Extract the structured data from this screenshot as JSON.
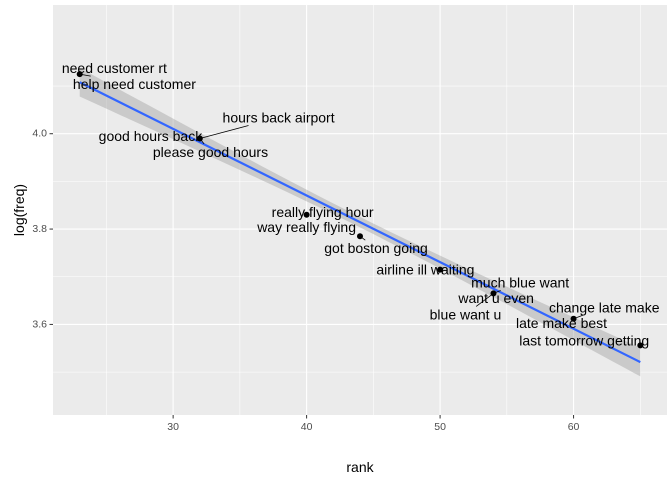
{
  "chart_data": {
    "type": "scatter",
    "title": "",
    "xlabel": "rank",
    "ylabel": "log(freq)",
    "xlim": [
      21.0,
      67.0
    ],
    "ylim": [
      3.41,
      4.27
    ],
    "x_ticks": [
      30,
      40,
      50,
      60
    ],
    "y_ticks": [
      3.6,
      3.8,
      4.0
    ],
    "x_tick_labels": [
      "30",
      "40",
      "50",
      "60"
    ],
    "y_tick_labels": [
      "3.6",
      "3.8",
      "4.0"
    ],
    "grid": true,
    "legend": "none",
    "points": [
      {
        "x": 23,
        "y": 4.125
      },
      {
        "x": 32,
        "y": 3.99
      },
      {
        "x": 40,
        "y": 3.83
      },
      {
        "x": 44,
        "y": 3.785
      },
      {
        "x": 50,
        "y": 3.715
      },
      {
        "x": 54,
        "y": 3.665
      },
      {
        "x": 60,
        "y": 3.612
      },
      {
        "x": 65,
        "y": 3.556
      }
    ],
    "labels": [
      {
        "text": "need customer rt",
        "x": 23,
        "y": 4.125,
        "lx": 25.6,
        "ly": 4.138,
        "anchor": "middle"
      },
      {
        "text": "help need customer",
        "x": 23,
        "y": 4.125,
        "lx": 27.1,
        "ly": 4.104,
        "anchor": "middle"
      },
      {
        "text": "hours back airport",
        "x": 32,
        "y": 3.99,
        "lx": 37.9,
        "ly": 4.034,
        "anchor": "middle"
      },
      {
        "text": "good hours back",
        "x": 32,
        "y": 3.99,
        "lx": 28.3,
        "ly": 3.995,
        "anchor": "middle"
      },
      {
        "text": "please good hours",
        "x": 32,
        "y": 3.99,
        "lx": 32.8,
        "ly": 3.962,
        "anchor": "middle"
      },
      {
        "text": "really flying hour",
        "x": 40,
        "y": 3.83,
        "lx": 41.2,
        "ly": 3.836,
        "anchor": "middle"
      },
      {
        "text": "way really flying",
        "x": 40,
        "y": 3.83,
        "lx": 40.0,
        "ly": 3.804,
        "anchor": "middle"
      },
      {
        "text": "got boston going",
        "x": 44,
        "y": 3.785,
        "lx": 45.2,
        "ly": 3.76,
        "anchor": "middle"
      },
      {
        "text": "airline ill waiting",
        "x": 50,
        "y": 3.715,
        "lx": 48.9,
        "ly": 3.715,
        "anchor": "middle"
      },
      {
        "text": "much blue want",
        "x": 54,
        "y": 3.665,
        "lx": 56.0,
        "ly": 3.688,
        "anchor": "middle"
      },
      {
        "text": "want u even",
        "x": 54,
        "y": 3.665,
        "lx": 54.2,
        "ly": 3.655,
        "anchor": "middle"
      },
      {
        "text": "blue want u",
        "x": 54,
        "y": 3.665,
        "lx": 51.9,
        "ly": 3.621,
        "anchor": "middle"
      },
      {
        "text": "change late make",
        "x": 60,
        "y": 3.612,
        "lx": 62.3,
        "ly": 3.636,
        "anchor": "middle"
      },
      {
        "text": "late make best",
        "x": 60,
        "y": 3.612,
        "lx": 59.1,
        "ly": 3.603,
        "anchor": "middle"
      },
      {
        "text": "last tomorrow getting",
        "x": 65,
        "y": 3.556,
        "lx": 60.8,
        "ly": 3.566,
        "anchor": "middle"
      }
    ],
    "fit": {
      "method": "lm",
      "x": [
        23,
        65
      ],
      "y": [
        4.108,
        3.521
      ],
      "ribbon_half_width_at_ends": 0.03,
      "ribbon_half_width_at_center": 0.011,
      "color": "#3366FF",
      "ribbon_color": "#999999"
    },
    "colors": {
      "panel_background": "#EBEBEB",
      "grid_major": "#FFFFFF",
      "point": "#000000"
    }
  }
}
